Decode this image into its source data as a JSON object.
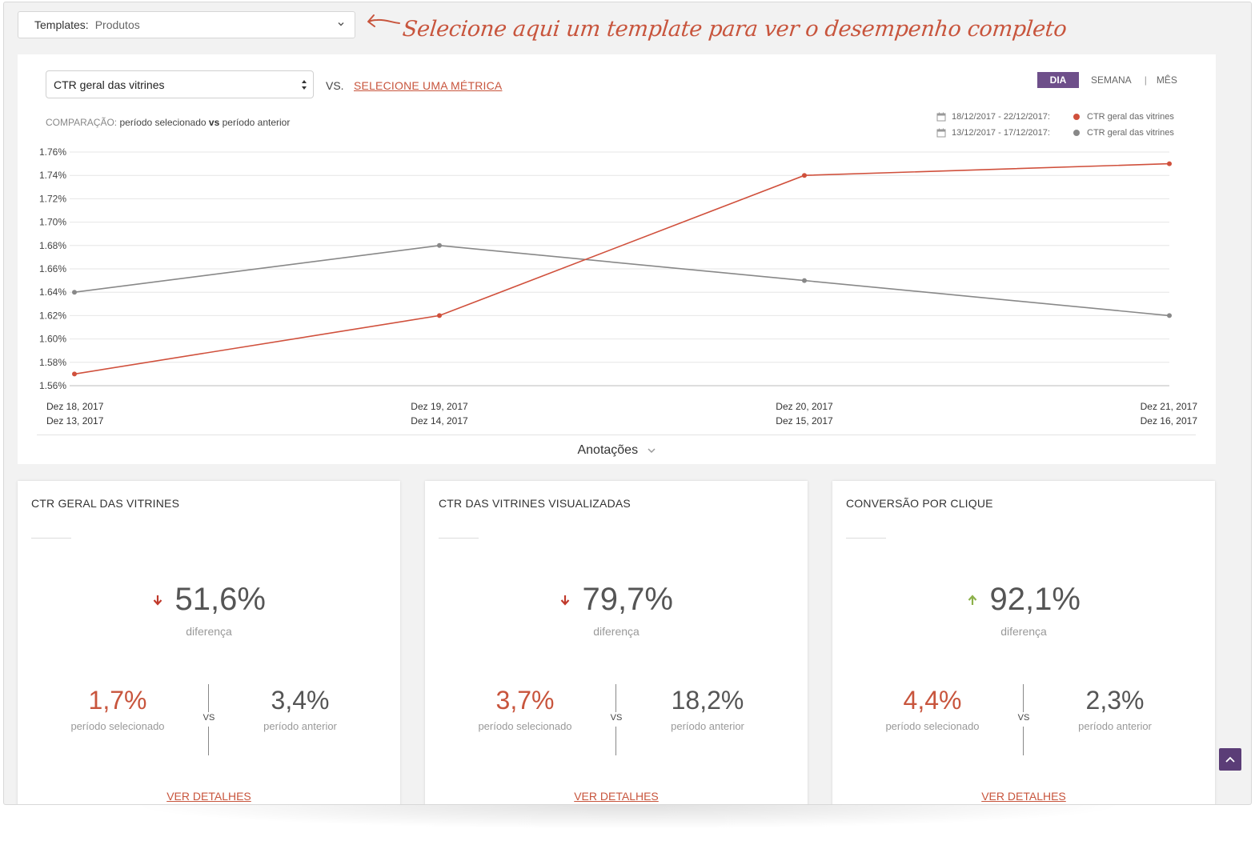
{
  "template_select": {
    "label": "Templates:",
    "value": "Produtos"
  },
  "hint": {
    "text": "Selecione aqui um template para ver o desempenho completo"
  },
  "metric_bar": {
    "selected_metric": "CTR geral das vitrines",
    "vs_label": "VS.",
    "choose_metric_link": "SELECIONE UMA MÉTRICA"
  },
  "comparison": {
    "label": "COMPARAÇÃO:",
    "left": "período selecionado",
    "vs": "vs",
    "right": "período anterior"
  },
  "period_toggle": {
    "day": "DIA",
    "week": "SEMANA",
    "separator": "|",
    "month": "MÊS"
  },
  "legend": [
    {
      "range": "18/12/2017 - 22/12/2017:",
      "series": "CTR geral das vitrines",
      "color": "#d0503c"
    },
    {
      "range": "13/12/2017 - 17/12/2017:",
      "series": "CTR geral das vitrines",
      "color": "#888888"
    }
  ],
  "chart_data": {
    "type": "line",
    "y_ticks": [
      "1.76%",
      "1.74%",
      "1.72%",
      "1.70%",
      "1.68%",
      "1.66%",
      "1.64%",
      "1.62%",
      "1.60%",
      "1.58%",
      "1.56%"
    ],
    "ylim": [
      1.56,
      1.76
    ],
    "x_labels_top": [
      "Dez 18, 2017",
      "Dez 19, 2017",
      "Dez 20, 2017",
      "Dez 21, 2017"
    ],
    "x_labels_bottom": [
      "Dez 13, 2017",
      "Dez 14, 2017",
      "Dez 15, 2017",
      "Dez 16, 2017"
    ],
    "series": [
      {
        "name": "CTR geral das vitrines",
        "period": "18/12/2017 - 22/12/2017",
        "color": "#d0503c",
        "values": [
          1.57,
          1.62,
          1.74,
          1.75
        ]
      },
      {
        "name": "CTR geral das vitrines",
        "period": "13/12/2017 - 17/12/2017",
        "color": "#888888",
        "values": [
          1.64,
          1.68,
          1.65,
          1.62
        ]
      }
    ],
    "grid": true
  },
  "annotations": {
    "label": "Anotações"
  },
  "kpis": [
    {
      "title": "CTR GERAL DAS VITRINES",
      "difference": "51,6%",
      "trend": "down",
      "difference_label": "diferença",
      "selected": "1,7%",
      "selected_label": "período selecionado",
      "vs": "VS",
      "previous": "3,4%",
      "previous_label": "período anterior",
      "details": "VER DETALHES"
    },
    {
      "title": "CTR DAS VITRINES VISUALIZADAS",
      "difference": "79,7%",
      "trend": "down",
      "difference_label": "diferença",
      "selected": "3,7%",
      "selected_label": "período selecionado",
      "vs": "VS",
      "previous": "18,2%",
      "previous_label": "período anterior",
      "details": "VER DETALHES"
    },
    {
      "title": "CONVERSÃO POR CLIQUE",
      "difference": "92,1%",
      "trend": "up",
      "difference_label": "diferença",
      "selected": "4,4%",
      "selected_label": "período selecionado",
      "vs": "VS",
      "previous": "2,3%",
      "previous_label": "período anterior",
      "details": "VER DETALHES"
    }
  ],
  "colors": {
    "accent": "#c8553d",
    "brand": "#6e4f8a",
    "down": "#c0392b",
    "up": "#8cb04a"
  },
  "icons": {
    "scroll_top": "chevron-up-icon",
    "template_chevron": "chevron-down-icon",
    "annotations_chevron": "chevron-down-icon",
    "calendar": "calendar-icon"
  }
}
